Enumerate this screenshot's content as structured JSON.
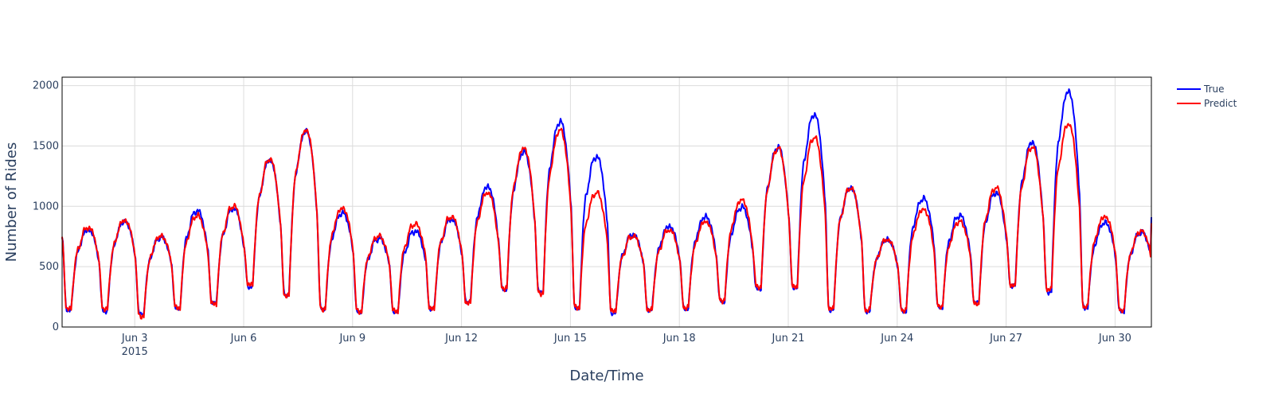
{
  "chart_data": {
    "type": "line",
    "title": "",
    "xlabel": "Date/Time",
    "ylabel": "Number of Rides",
    "x_range": [
      "2015-06-01",
      "2015-07-01"
    ],
    "ylim": [
      0,
      2070
    ],
    "y_ticks": [
      0,
      500,
      1000,
      1500,
      2000
    ],
    "x_ticks": [
      {
        "date": "2015-06-03",
        "label": "Jun 3",
        "sublabel": "2015"
      },
      {
        "date": "2015-06-06",
        "label": "Jun 6"
      },
      {
        "date": "2015-06-09",
        "label": "Jun 9"
      },
      {
        "date": "2015-06-12",
        "label": "Jun 12"
      },
      {
        "date": "2015-06-15",
        "label": "Jun 15"
      },
      {
        "date": "2015-06-18",
        "label": "Jun 18"
      },
      {
        "date": "2015-06-21",
        "label": "Jun 21"
      },
      {
        "date": "2015-06-24",
        "label": "Jun 24"
      },
      {
        "date": "2015-06-27",
        "label": "Jun 27"
      },
      {
        "date": "2015-06-30",
        "label": "Jun 30"
      }
    ],
    "grid": true,
    "legend_position": "top-right",
    "daily_peaks": [
      {
        "date": "2015-06-01",
        "true": 810,
        "predict": 830
      },
      {
        "date": "2015-06-02",
        "true": 880,
        "predict": 890
      },
      {
        "date": "2015-06-03",
        "true": 750,
        "predict": 760
      },
      {
        "date": "2015-06-04",
        "true": 970,
        "predict": 930
      },
      {
        "date": "2015-06-05",
        "true": 990,
        "predict": 1010
      },
      {
        "date": "2015-06-06",
        "true": 1390,
        "predict": 1400
      },
      {
        "date": "2015-06-07",
        "true": 1630,
        "predict": 1640
      },
      {
        "date": "2015-06-08",
        "true": 950,
        "predict": 990
      },
      {
        "date": "2015-06-09",
        "true": 740,
        "predict": 760
      },
      {
        "date": "2015-06-10",
        "true": 800,
        "predict": 860
      },
      {
        "date": "2015-06-11",
        "true": 900,
        "predict": 920
      },
      {
        "date": "2015-06-12",
        "true": 1170,
        "predict": 1120
      },
      {
        "date": "2015-06-13",
        "true": 1460,
        "predict": 1490
      },
      {
        "date": "2015-06-14",
        "true": 1710,
        "predict": 1640
      },
      {
        "date": "2015-06-15",
        "true": 1420,
        "predict": 1120
      },
      {
        "date": "2015-06-16",
        "true": 770,
        "predict": 760
      },
      {
        "date": "2015-06-17",
        "true": 840,
        "predict": 810
      },
      {
        "date": "2015-06-18",
        "true": 920,
        "predict": 880
      },
      {
        "date": "2015-06-19",
        "true": 1000,
        "predict": 1060
      },
      {
        "date": "2015-06-20",
        "true": 1500,
        "predict": 1490
      },
      {
        "date": "2015-06-21",
        "true": 1770,
        "predict": 1580
      },
      {
        "date": "2015-06-22",
        "true": 1160,
        "predict": 1160
      },
      {
        "date": "2015-06-23",
        "true": 730,
        "predict": 730
      },
      {
        "date": "2015-06-24",
        "true": 1070,
        "predict": 980
      },
      {
        "date": "2015-06-25",
        "true": 930,
        "predict": 880
      },
      {
        "date": "2015-06-26",
        "true": 1120,
        "predict": 1160
      },
      {
        "date": "2015-06-27",
        "true": 1540,
        "predict": 1500
      },
      {
        "date": "2015-06-28",
        "true": 1960,
        "predict": 1690
      },
      {
        "date": "2015-06-29",
        "true": 870,
        "predict": 920
      },
      {
        "date": "2015-06-30",
        "true": 790,
        "predict": 800
      }
    ],
    "daily_troughs": [
      {
        "date": "2015-06-01",
        "true": 140,
        "predict": 150
      },
      {
        "date": "2015-06-02",
        "true": 130,
        "predict": 150
      },
      {
        "date": "2015-06-03",
        "true": 110,
        "predict": 90
      },
      {
        "date": "2015-06-04",
        "true": 150,
        "predict": 160
      },
      {
        "date": "2015-06-05",
        "true": 200,
        "predict": 190
      },
      {
        "date": "2015-06-06",
        "true": 330,
        "predict": 350
      },
      {
        "date": "2015-06-07",
        "true": 270,
        "predict": 260
      },
      {
        "date": "2015-06-08",
        "true": 150,
        "predict": 150
      },
      {
        "date": "2015-06-09",
        "true": 120,
        "predict": 130
      },
      {
        "date": "2015-06-10",
        "true": 120,
        "predict": 130
      },
      {
        "date": "2015-06-11",
        "true": 150,
        "predict": 150
      },
      {
        "date": "2015-06-12",
        "true": 210,
        "predict": 200
      },
      {
        "date": "2015-06-13",
        "true": 310,
        "predict": 320
      },
      {
        "date": "2015-06-14",
        "true": 290,
        "predict": 280
      },
      {
        "date": "2015-06-15",
        "true": 150,
        "predict": 160
      },
      {
        "date": "2015-06-16",
        "true": 110,
        "predict": 130
      },
      {
        "date": "2015-06-17",
        "true": 140,
        "predict": 140
      },
      {
        "date": "2015-06-18",
        "true": 150,
        "predict": 160
      },
      {
        "date": "2015-06-19",
        "true": 210,
        "predict": 220
      },
      {
        "date": "2015-06-20",
        "true": 310,
        "predict": 330
      },
      {
        "date": "2015-06-21",
        "true": 320,
        "predict": 330
      },
      {
        "date": "2015-06-22",
        "true": 140,
        "predict": 150
      },
      {
        "date": "2015-06-23",
        "true": 130,
        "predict": 140
      },
      {
        "date": "2015-06-24",
        "true": 130,
        "predict": 140
      },
      {
        "date": "2015-06-25",
        "true": 160,
        "predict": 170
      },
      {
        "date": "2015-06-26",
        "true": 200,
        "predict": 190
      },
      {
        "date": "2015-06-27",
        "true": 340,
        "predict": 340
      },
      {
        "date": "2015-06-28",
        "true": 290,
        "predict": 310
      },
      {
        "date": "2015-06-29",
        "true": 160,
        "predict": 170
      },
      {
        "date": "2015-06-30",
        "true": 130,
        "predict": 140
      }
    ],
    "series": [
      {
        "name": "True",
        "color": "#0000ff"
      },
      {
        "name": "Predict",
        "color": "#ff0000"
      }
    ]
  }
}
